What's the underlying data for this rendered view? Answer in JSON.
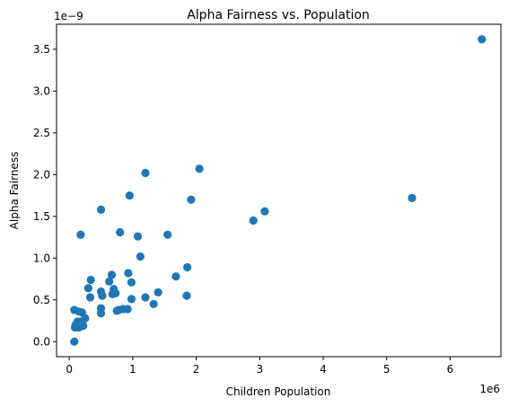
{
  "chart_data": {
    "type": "scatter",
    "title": "Alpha Fairness vs. Population",
    "xlabel": "Children Population",
    "ylabel": "Alpha Fairness",
    "x_offset_text": "1e6",
    "y_offset_text": "1e−9",
    "xlim": [
      -0.2,
      6.8
    ],
    "ylim": [
      -0.18,
      3.8
    ],
    "x_ticks": [
      0,
      1,
      2,
      3,
      4,
      5,
      6
    ],
    "x_tick_labels": [
      "0",
      "1",
      "2",
      "3",
      "4",
      "5",
      "6"
    ],
    "y_ticks": [
      0.0,
      0.5,
      1.0,
      1.5,
      2.0,
      2.5,
      3.0,
      3.5
    ],
    "y_tick_labels": [
      "0.0",
      "0.5",
      "1.0",
      "1.5",
      "2.0",
      "2.5",
      "3.0",
      "3.5"
    ],
    "marker_color": "#1f77b4",
    "grid": false,
    "series": [
      {
        "x": [
          6.5,
          5.4,
          3.08,
          2.9,
          2.05,
          1.92,
          1.55,
          1.2,
          0.95,
          0.5,
          0.18,
          0.8,
          1.08,
          1.12,
          1.86,
          1.68,
          0.93,
          0.98,
          0.67,
          0.63,
          0.34,
          0.3,
          0.7,
          0.5,
          1.4,
          1.2,
          1.85,
          1.33,
          0.98,
          0.52,
          0.33,
          0.73,
          0.68,
          0.5,
          0.85,
          0.78,
          0.5,
          0.08,
          0.15,
          0.2,
          0.13,
          0.25,
          0.17,
          0.1,
          0.22,
          0.09,
          0.08,
          0.15,
          0.92,
          0.75
        ],
        "y": [
          3.62,
          1.72,
          1.56,
          1.45,
          2.07,
          1.7,
          1.28,
          2.02,
          1.75,
          1.58,
          1.28,
          1.31,
          1.26,
          1.02,
          0.89,
          0.78,
          0.82,
          0.71,
          0.8,
          0.72,
          0.74,
          0.64,
          0.63,
          0.6,
          0.59,
          0.53,
          0.55,
          0.45,
          0.51,
          0.55,
          0.53,
          0.58,
          0.57,
          0.4,
          0.39,
          0.38,
          0.34,
          0.38,
          0.36,
          0.35,
          0.24,
          0.28,
          0.24,
          0.2,
          0.19,
          0.17,
          0.0,
          0.17,
          0.39,
          0.37
        ]
      }
    ]
  }
}
